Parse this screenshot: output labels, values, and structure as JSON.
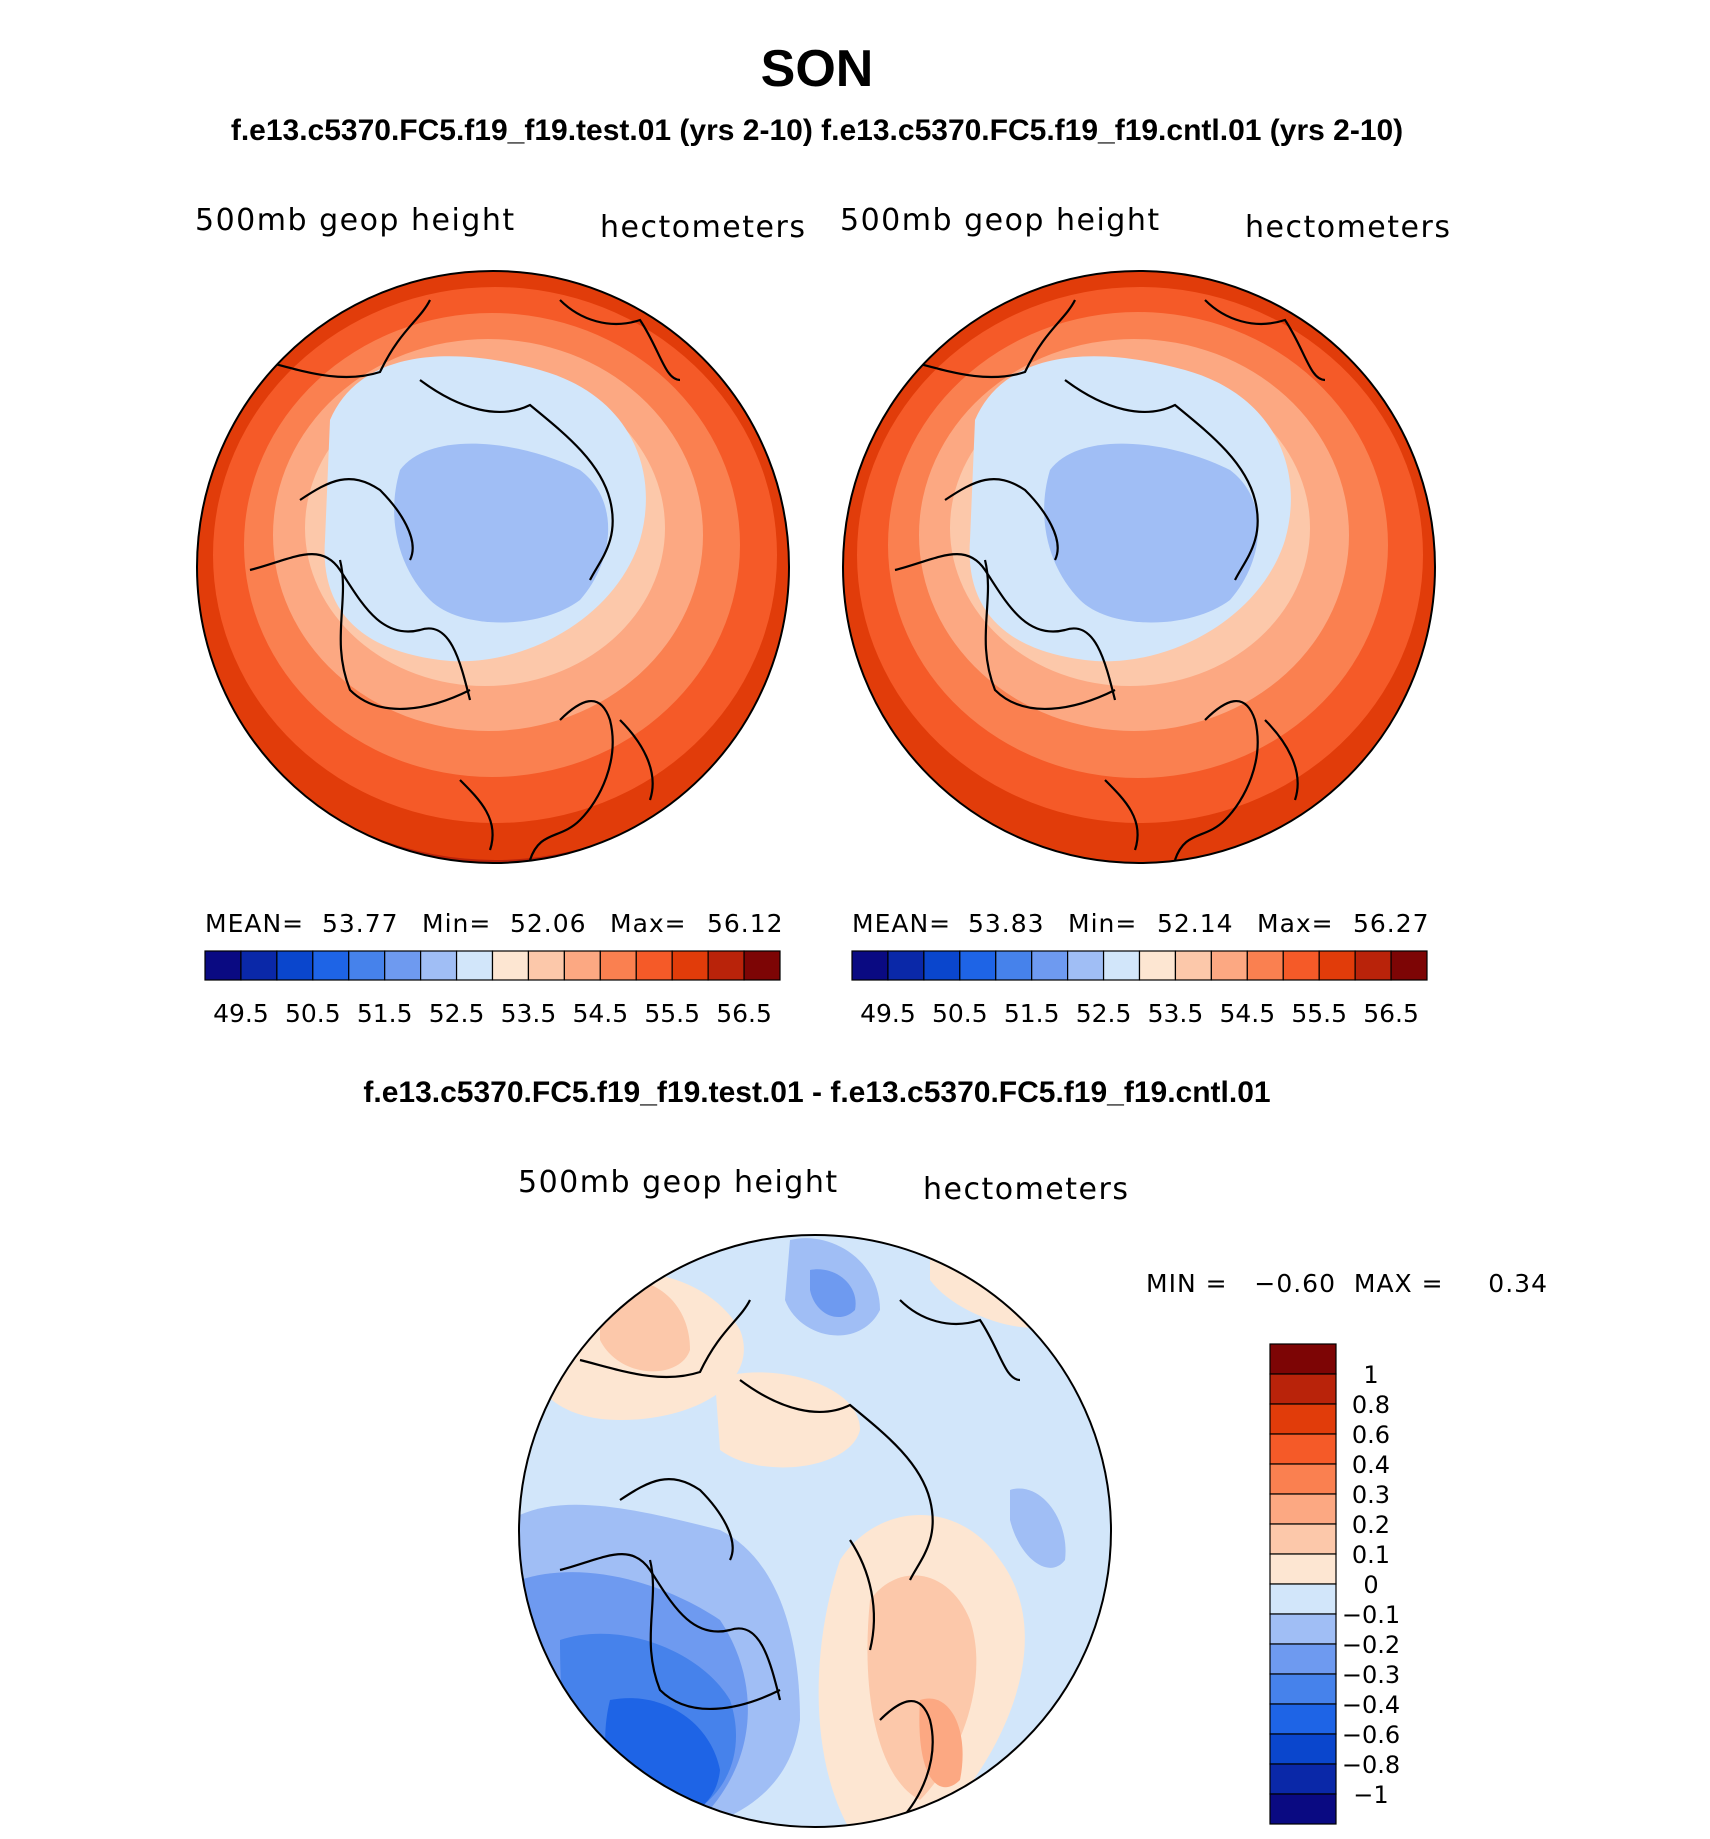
{
  "title": "SON",
  "subtitle": "f.e13.c5370.FC5.f19_f19.test.01 (yrs 2-10) f.e13.c5370.FC5.f19_f19.cntl.01 (yrs 2-10)",
  "diff_title": "f.e13.c5370.FC5.f19_f19.test.01 - f.e13.c5370.FC5.f19_f19.cntl.01",
  "chart_data": [
    {
      "type": "heatmap",
      "name": "test-panel",
      "left_label": "500mb geop height",
      "right_label": "hectometers",
      "mean_label": "MEAN=",
      "mean": "53.77",
      "min_label": "Min=",
      "min": "52.06",
      "max_label": "Max=",
      "max": "56.12",
      "colorbar_colors": [
        "#0a0a82",
        "#0a28a8",
        "#0a46cd",
        "#1e64e6",
        "#4682eb",
        "#6e9af0",
        "#a0bef5",
        "#d2e6fa",
        "#fde6d2",
        "#fcc8aa",
        "#fca882",
        "#fa8050",
        "#f55a28",
        "#e13c0a",
        "#b9230a",
        "#7d0505"
      ],
      "colorbar_ticks": [
        "49.5",
        "50.5",
        "51.5",
        "52.5",
        "53.5",
        "54.5",
        "55.5",
        "56.5"
      ]
    },
    {
      "type": "heatmap",
      "name": "control-panel",
      "left_label": "500mb geop height",
      "right_label": "hectometers",
      "mean_label": "MEAN=",
      "mean": "53.83",
      "min_label": "Min=",
      "min": "52.14",
      "max_label": "Max=",
      "max": "56.27",
      "colorbar_colors": [
        "#0a0a82",
        "#0a28a8",
        "#0a46cd",
        "#1e64e6",
        "#4682eb",
        "#6e9af0",
        "#a0bef5",
        "#d2e6fa",
        "#fde6d2",
        "#fcc8aa",
        "#fca882",
        "#fa8050",
        "#f55a28",
        "#e13c0a",
        "#b9230a",
        "#7d0505"
      ],
      "colorbar_ticks": [
        "49.5",
        "50.5",
        "51.5",
        "52.5",
        "53.5",
        "54.5",
        "55.5",
        "56.5"
      ]
    },
    {
      "type": "heatmap",
      "name": "difference-panel",
      "left_label": "500mb geop height",
      "right_label": "hectometers",
      "minmax_text": "MIN =   −0.60  MAX =     0.34",
      "colorbar_levels": [
        "1",
        "0.8",
        "0.6",
        "0.4",
        "0.3",
        "0.2",
        "0.1",
        "0",
        "−0.1",
        "−0.2",
        "−0.3",
        "−0.4",
        "−0.6",
        "−0.8",
        "−1"
      ],
      "colorbar_colors": [
        "#7d0505",
        "#b9230a",
        "#e13c0a",
        "#f55a28",
        "#fa8050",
        "#fca882",
        "#fcc8aa",
        "#fde6d2",
        "#d2e6fa",
        "#a0bef5",
        "#6e9af0",
        "#4682eb",
        "#1e64e6",
        "#0a46cd",
        "#0a28a8",
        "#0a0a82"
      ]
    }
  ]
}
